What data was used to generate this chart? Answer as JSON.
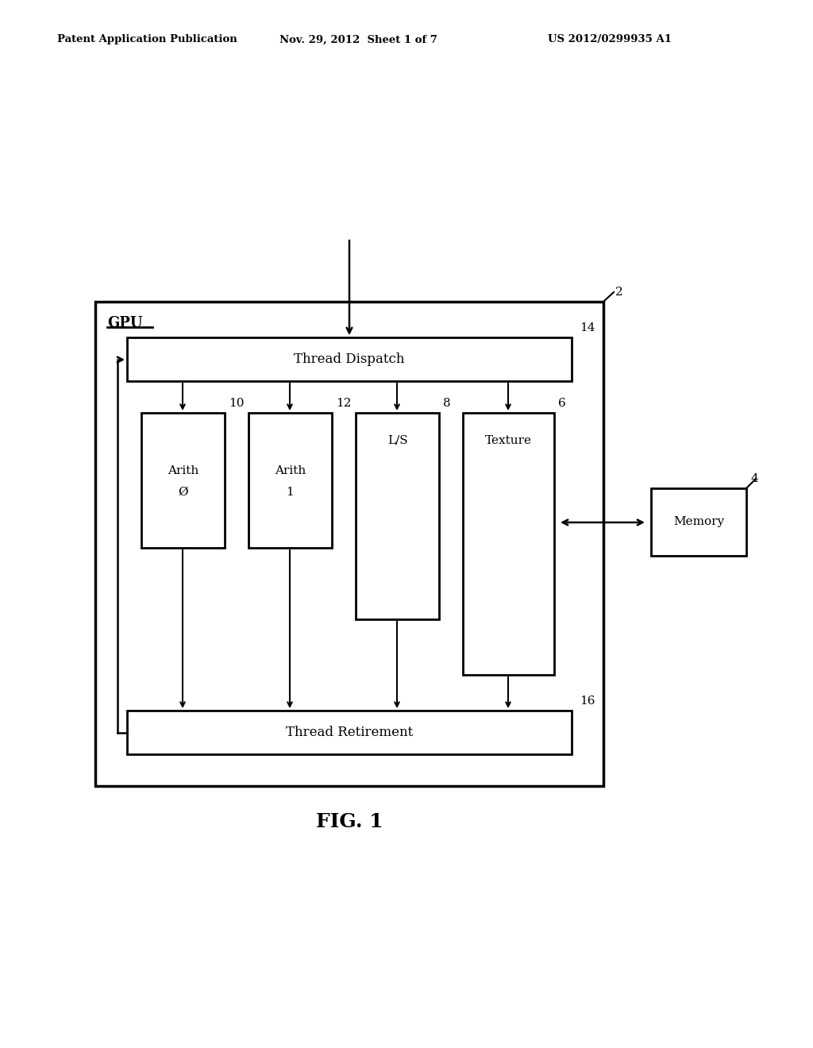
{
  "bg_color": "#ffffff",
  "header_left": "Patent Application Publication",
  "header_mid": "Nov. 29, 2012  Sheet 1 of 7",
  "header_right": "US 2012/0299935 A1",
  "fig_label": "FIG. 1",
  "gpu_label": "GPU",
  "ref_gpu": "2",
  "ref_memory": "4",
  "ref_texture": "6",
  "ref_ls": "8",
  "ref_arith1": "12",
  "ref_arith0": "10",
  "ref_thread_dispatch": "14",
  "ref_thread_retirement": "16",
  "thread_dispatch_text": "Thread Dispatch",
  "thread_retirement_text": "Thread Retirement",
  "arith0_line1": "Arith",
  "arith0_line2": "Ø",
  "arith1_line1": "Arith",
  "arith1_line2": "1",
  "ls_text": "L/S",
  "texture_text": "Texture",
  "memory_text": "Memory"
}
